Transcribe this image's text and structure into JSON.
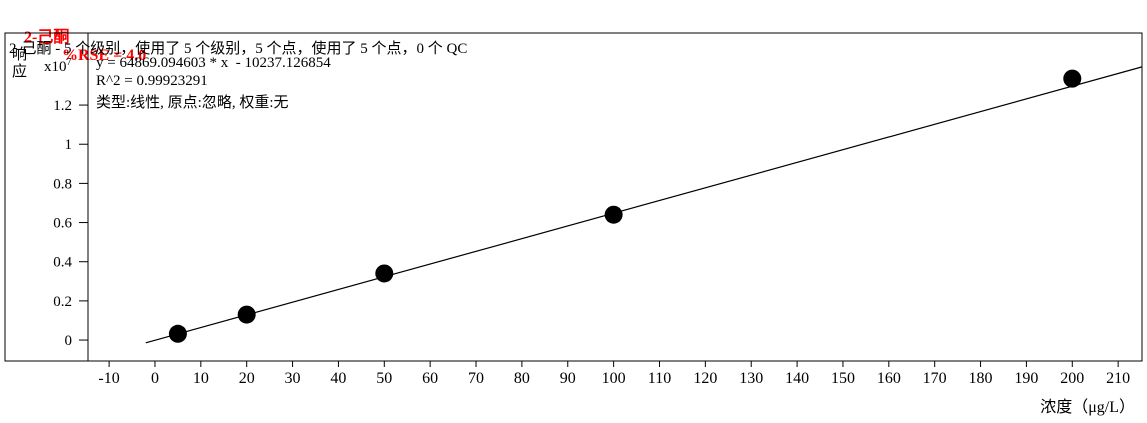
{
  "header": {
    "compound": "2-己酮",
    "rse": "%RSE = 4.0"
  },
  "panel": {
    "subtitle": "2-己酮 - 5 个级别，使用了 5 个级别，5 个点，使用了 5 个点，0 个 QC",
    "equation": "y = 64869.094603 * x  - 10237.126854",
    "r_squared": "R^2 = 0.99923291",
    "fit_info": "类型:线性, 原点:忽略, 权重:无"
  },
  "axes": {
    "y_label": "响应",
    "y_scale_base": "x10",
    "y_scale_exp": "7",
    "x_label": "浓度（μg/L）"
  },
  "chart_data": {
    "type": "scatter",
    "title": "2-己酮 %RSE = 4.0",
    "xlabel": "浓度（μg/L）",
    "ylabel": "响应 (x10^7)",
    "grid": false,
    "legend": "none",
    "xlim": [
      -14.6,
      215.2
    ],
    "ylim_1e7": [
      -0.107,
      1.568
    ],
    "x_ticks": [
      -10,
      0,
      10,
      20,
      30,
      40,
      50,
      60,
      70,
      80,
      90,
      100,
      110,
      120,
      130,
      140,
      150,
      160,
      170,
      180,
      190,
      200,
      210
    ],
    "y_ticks_1e7": [
      0,
      0.2,
      0.4,
      0.6,
      0.8,
      1,
      1.2
    ],
    "points": [
      [
        5,
        0.032
      ],
      [
        20,
        0.13
      ],
      [
        50,
        0.34
      ],
      [
        100,
        0.64
      ],
      [
        200,
        1.335
      ]
    ],
    "fit": {
      "type": "linear",
      "slope": 64869.094603,
      "intercept": -10237.126854,
      "r_squared": 0.99923291,
      "origin": "忽略",
      "weight": "无"
    },
    "line_draw_x_range": [
      -2,
      215.2
    ],
    "levels_used": 5,
    "points_used": 5,
    "qc_count": 0
  }
}
